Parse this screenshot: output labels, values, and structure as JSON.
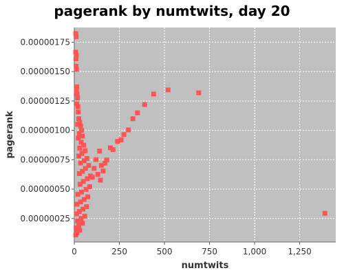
{
  "chart_data": {
    "type": "scatter",
    "title": "pagerank by numtwits, day 20",
    "xlabel": "numtwits",
    "ylabel": "pagerank",
    "xlim": [
      0,
      1450
    ],
    "ylim": [
      5e-08,
      1.875e-06
    ],
    "xticks": [
      0,
      250,
      500,
      750,
      1000,
      1250
    ],
    "xtick_labels": [
      "0",
      "250",
      "500",
      "750",
      "1,000",
      "1,250"
    ],
    "yticks": [
      2.5e-07,
      5e-07,
      7.5e-07,
      1e-06,
      1.25e-06,
      1.5e-06,
      1.75e-06
    ],
    "ytick_labels": [
      "0.00000025",
      "0.00000050",
      "0.00000075",
      "0.00000100",
      "0.00000125",
      "0.00000150",
      "0.00000175"
    ],
    "grid": true,
    "colors": {
      "plot_bg": "#c0c0c0",
      "marker": "#ff5555",
      "grid": "#ffffff"
    },
    "series": [
      {
        "points": [
          [
            8,
            1.823e-06
          ],
          [
            10,
            1.797e-06
          ],
          [
            8,
            1.665e-06
          ],
          [
            11,
            1.638e-06
          ],
          [
            9,
            1.609e-06
          ],
          [
            10,
            1.546e-06
          ],
          [
            12,
            1.519e-06
          ],
          [
            14,
            1.37e-06
          ],
          [
            12,
            1.335e-06
          ],
          [
            15,
            1.311e-06
          ],
          [
            18,
            1.276e-06
          ],
          [
            14,
            1.226e-06
          ],
          [
            20,
            1.201e-06
          ],
          [
            22,
            1.156e-06
          ],
          [
            25,
            1.099e-06
          ],
          [
            30,
            1.069e-06
          ],
          [
            18,
            1.051e-06
          ],
          [
            35,
            1.036e-06
          ],
          [
            40,
            1.001e-06
          ],
          [
            28,
            9.74e-07
          ],
          [
            45,
            9.51e-07
          ],
          [
            22,
            9.34e-07
          ],
          [
            38,
            8.99e-07
          ],
          [
            52,
            8.74e-07
          ],
          [
            30,
            8.49e-07
          ],
          [
            60,
            8.26e-07
          ],
          [
            42,
            8.03e-07
          ],
          [
            25,
            7.81e-07
          ],
          [
            70,
            7.61e-07
          ],
          [
            55,
            7.41e-07
          ],
          [
            35,
            7.22e-07
          ],
          [
            80,
            7.01e-07
          ],
          [
            62,
            6.76e-07
          ],
          [
            45,
            6.51e-07
          ],
          [
            28,
            6.32e-07
          ],
          [
            90,
            6.12e-07
          ],
          [
            72,
            5.88e-07
          ],
          [
            50,
            5.65e-07
          ],
          [
            32,
            5.41e-07
          ],
          [
            85,
            5.21e-07
          ],
          [
            65,
            4.98e-07
          ],
          [
            40,
            4.76e-07
          ],
          [
            20,
            4.55e-07
          ],
          [
            75,
            4.34e-07
          ],
          [
            55,
            4.12e-07
          ],
          [
            35,
            3.91e-07
          ],
          [
            15,
            3.72e-07
          ],
          [
            68,
            3.51e-07
          ],
          [
            48,
            3.3e-07
          ],
          [
            28,
            3.1e-07
          ],
          [
            12,
            2.9e-07
          ],
          [
            58,
            2.7e-07
          ],
          [
            38,
            2.5e-07
          ],
          [
            18,
            2.3e-07
          ],
          [
            45,
            2.1e-07
          ],
          [
            25,
            1.9e-07
          ],
          [
            10,
            1.7e-07
          ],
          [
            30,
            1.5e-07
          ],
          [
            15,
            1.3e-07
          ],
          [
            8,
            1.1e-07
          ],
          [
            140,
            8.24e-07
          ],
          [
            120,
            7.51e-07
          ],
          [
            150,
            7.01e-07
          ],
          [
            110,
            6.76e-07
          ],
          [
            170,
            7.21e-07
          ],
          [
            160,
            6.54e-07
          ],
          [
            130,
            6.26e-07
          ],
          [
            100,
            6.01e-07
          ],
          [
            145,
            5.76e-07
          ],
          [
            180,
            7.48e-07
          ],
          [
            200,
            8.51e-07
          ],
          [
            215,
            8.36e-07
          ],
          [
            240,
            9.06e-07
          ],
          [
            260,
            9.19e-07
          ],
          [
            275,
            9.64e-07
          ],
          [
            300,
            1.004e-06
          ],
          [
            325,
            1.099e-06
          ],
          [
            350,
            1.149e-06
          ],
          [
            390,
            1.219e-06
          ],
          [
            440,
            1.309e-06
          ],
          [
            520,
            1.344e-06
          ],
          [
            690,
            1.319e-06
          ],
          [
            1390,
            2.94e-07
          ]
        ]
      }
    ]
  }
}
